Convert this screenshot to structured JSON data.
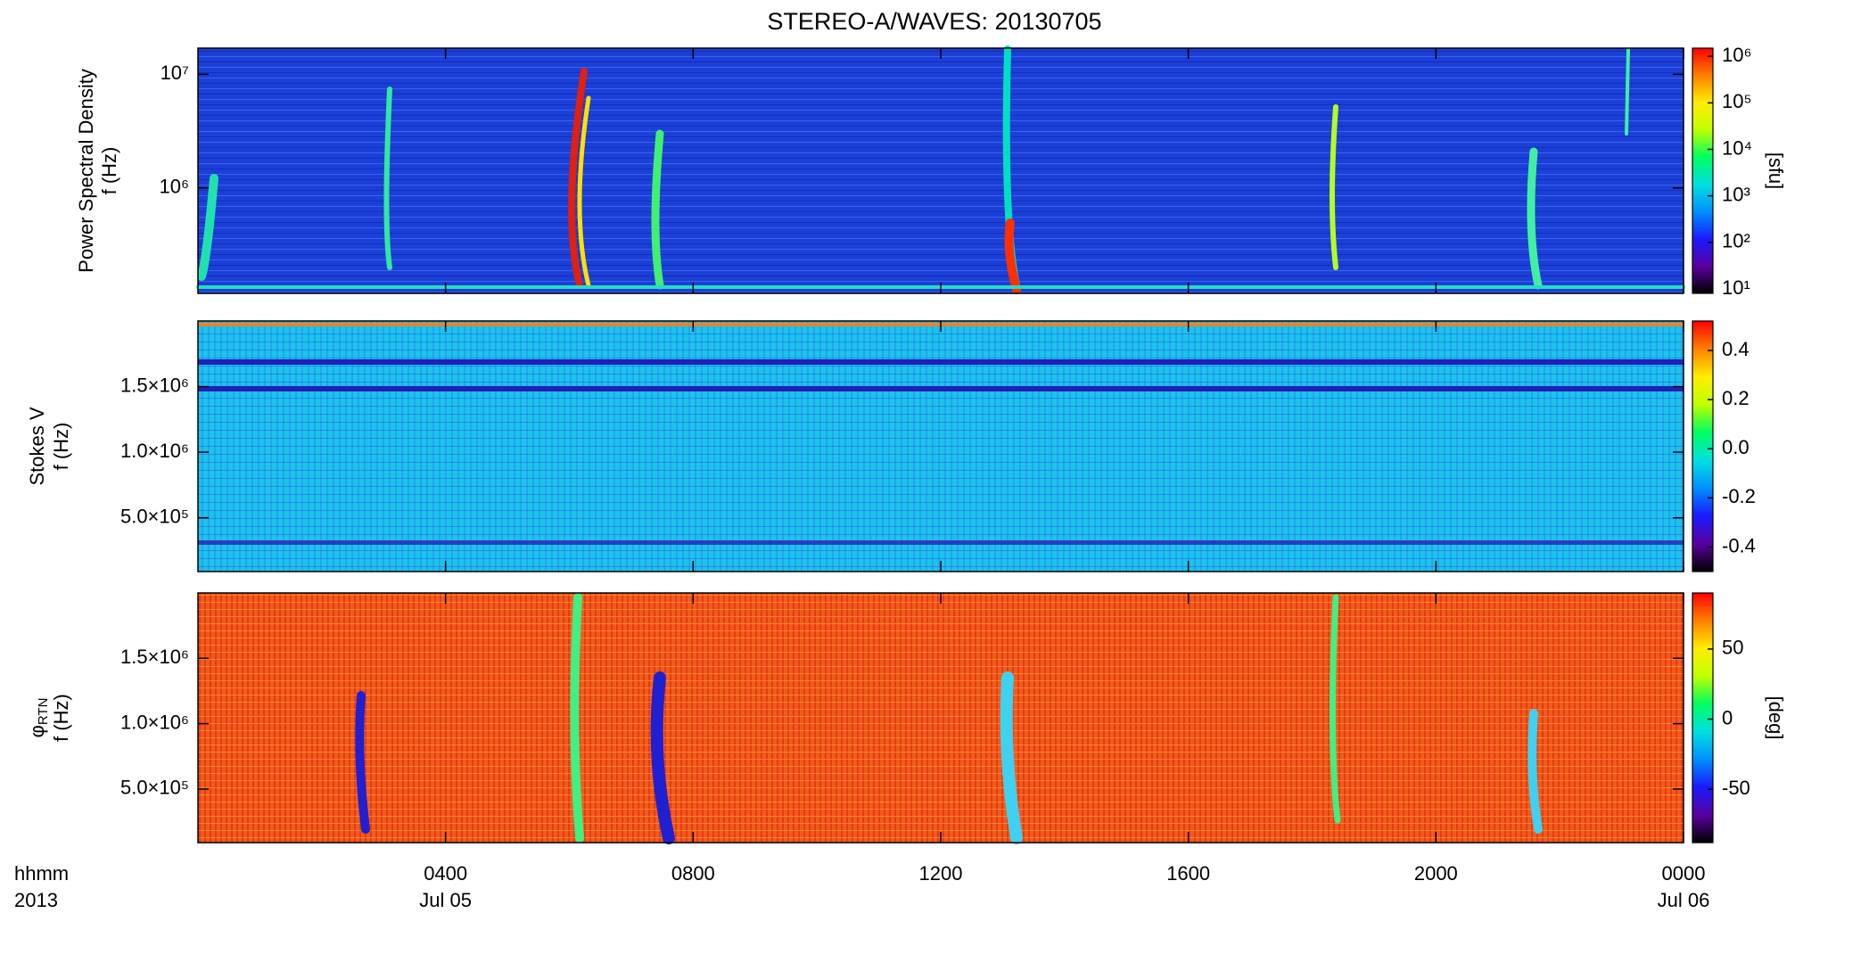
{
  "title": "STEREO-A/WAVES: 20130705",
  "colormap": [
    "#000000",
    "#5a00a0",
    "#1a1aff",
    "#0090ff",
    "#00e0e0",
    "#00ff60",
    "#c0ff00",
    "#ffee00",
    "#ff8000",
    "#ff0000"
  ],
  "chart_data": [
    {
      "type": "heatmap",
      "ylabel_lines": [
        "Power Spectral Density",
        "f (Hz)"
      ],
      "ylog": true,
      "ylim": [
        118000,
        17000000
      ],
      "yticks": [
        {
          "value": 1000000,
          "label": "10⁶"
        },
        {
          "value": 10000000,
          "label": "10⁷"
        }
      ],
      "colorbar_label": "[sfu]",
      "clog": true,
      "clim": [
        8,
        1500000
      ],
      "cticks": [
        {
          "value": 10,
          "label": "10¹"
        },
        {
          "value": 100,
          "label": "10²"
        },
        {
          "value": 1000,
          "label": "10³"
        },
        {
          "value": 10000,
          "label": "10⁴"
        },
        {
          "value": 100000,
          "label": "10⁵"
        },
        {
          "value": 1000000,
          "label": "10⁶"
        }
      ]
    },
    {
      "type": "heatmap",
      "ylabel_lines": [
        "Stokes V",
        "f (Hz)"
      ],
      "ylog": false,
      "ylim": [
        90000,
        2000000
      ],
      "yticks": [
        {
          "value": 500000,
          "label": "5.0×10⁵"
        },
        {
          "value": 1000000,
          "label": "1.0×10⁶"
        },
        {
          "value": 1500000,
          "label": "1.5×10⁶"
        }
      ],
      "clog": false,
      "clim": [
        -0.5,
        0.52
      ],
      "cticks": [
        -0.4,
        -0.2,
        {
          "value": 0,
          "label": "0.0"
        },
        0.2,
        0.4
      ]
    },
    {
      "type": "heatmap",
      "ylabel_lines": [
        "φ",
        "f (Hz)"
      ],
      "ylabel_sub": "RTN",
      "ylog": false,
      "ylim": [
        90000,
        2000000
      ],
      "yticks": [
        {
          "value": 500000,
          "label": "5.0×10⁵"
        },
        {
          "value": 1000000,
          "label": "1.0×10⁶"
        },
        {
          "value": 1500000,
          "label": "1.5×10⁶"
        }
      ],
      "colorbar_label": "[deg]",
      "clog": false,
      "clim": [
        -88,
        90
      ],
      "cticks": [
        -50,
        0,
        50
      ],
      "xlim": [
        0,
        24
      ],
      "xticks": [
        {
          "value": 4,
          "label": "0400"
        },
        {
          "value": 8,
          "label": "0800"
        },
        {
          "value": 12,
          "label": "1200"
        },
        {
          "value": 16,
          "label": "1600"
        },
        {
          "value": 20,
          "label": "2000"
        },
        {
          "value": 24,
          "label": "0000"
        }
      ],
      "xdate_ticks": [
        {
          "value": 4,
          "label": "Jul 05"
        },
        {
          "value": 24,
          "label": "Jul 06"
        }
      ],
      "xlabel_lines": [
        "hhmm",
        "2013"
      ]
    }
  ]
}
